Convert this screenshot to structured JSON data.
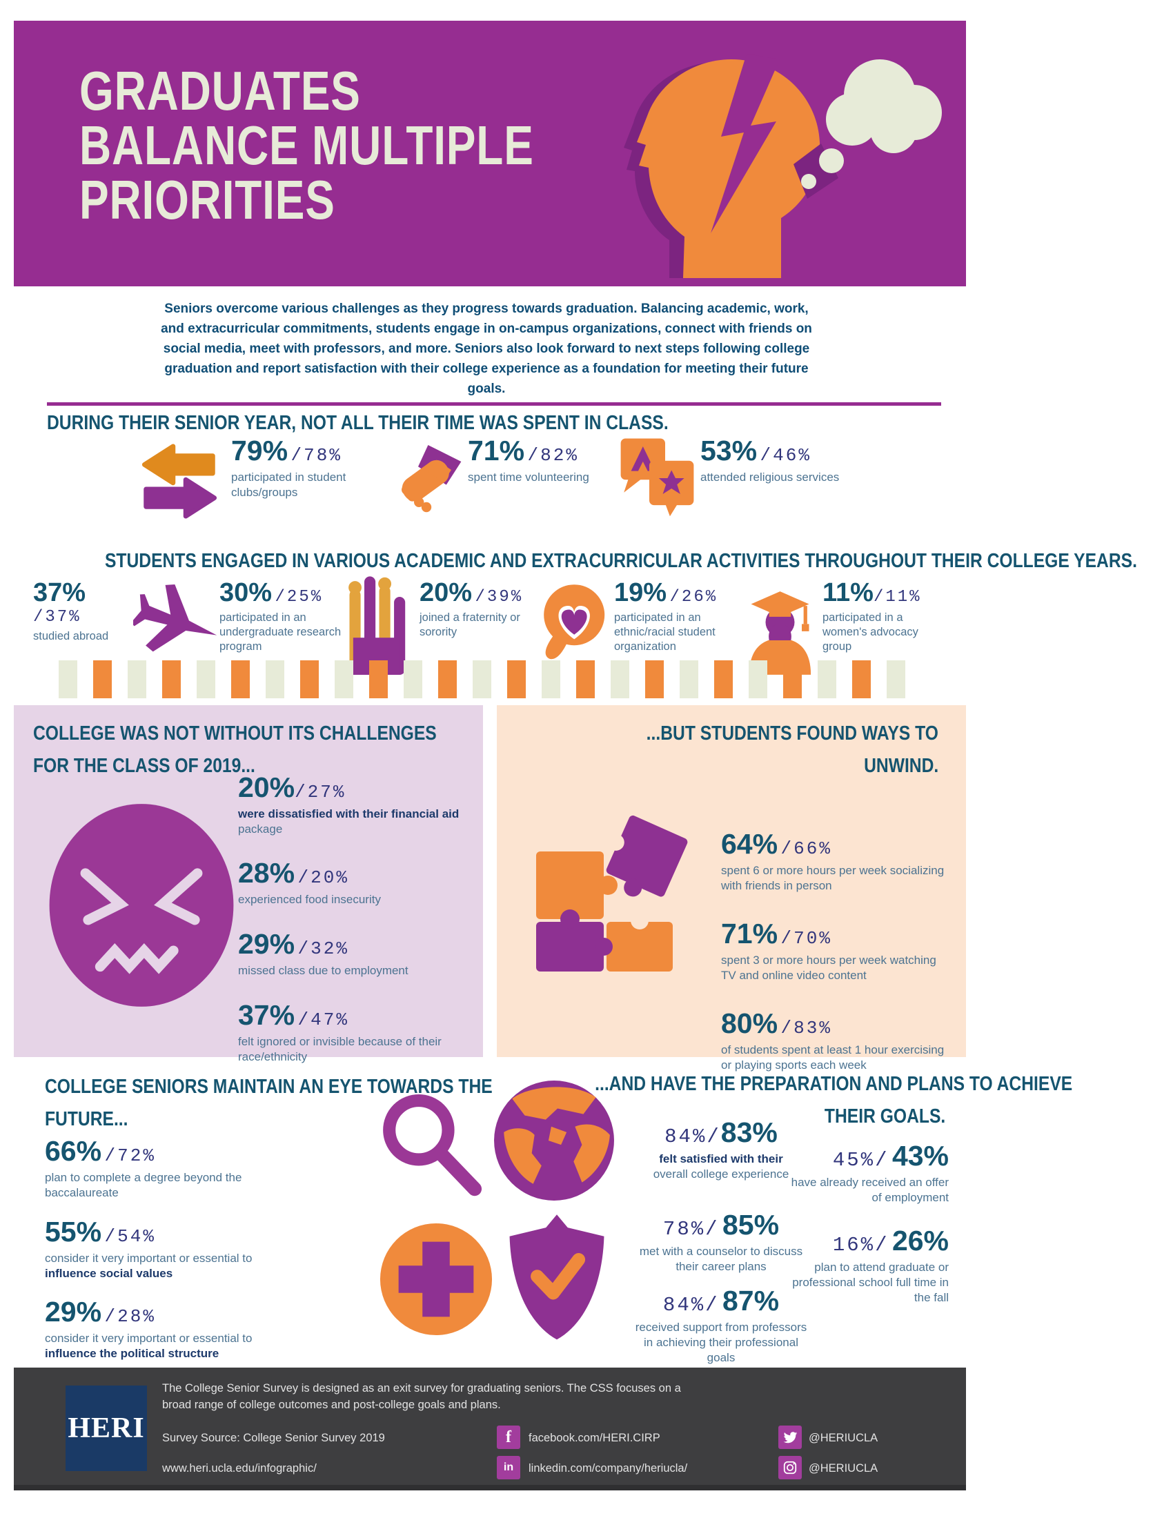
{
  "colors": {
    "banner_purple": "#962d91",
    "icon_purple": "#9b3896",
    "orange": "#f08a3c",
    "gold": "#e3a33d",
    "cream": "#e7ebd8",
    "teal_heading": "#15546f",
    "indigo_number": "#32367c",
    "steel_label": "#4c7391",
    "navy_bold_label": "#1d3a6b",
    "lavender_box": "#e6d4e7",
    "peach_box": "#fce4d1",
    "footer_gray": "#3e3e40",
    "logo_navy": "#1a3a66",
    "social_purple": "#a23d9d"
  },
  "decor": {
    "square_count": 25
  },
  "header": {
    "title_line1": "GRADUATES",
    "title_line2": "BALANCE MULTIPLE",
    "title_line3": "PRIORITIES"
  },
  "intro": "Seniors overcome various challenges as they progress towards graduation. Balancing academic, work, and extracurricular commitments, students engage in on-campus organizations, connect with friends on social media, meet with professors, and more. Seniors also look forward to next steps following college graduation and report satisfaction with their college experience as a foundation for meeting their future goals.",
  "section_senior_year": {
    "heading": "DURING THEIR SENIOR YEAR, NOT ALL THEIR TIME WAS SPENT IN CLASS.",
    "stats": [
      {
        "value": "79%",
        "comparison": "/78%",
        "label": "participated in student clubs/groups"
      },
      {
        "value": "71%",
        "comparison": "/82%",
        "label": "spent time volunteering"
      },
      {
        "value": "53%",
        "comparison": "/46%",
        "label": "attended religious services"
      }
    ]
  },
  "section_activities": {
    "heading": "STUDENTS ENGAGED IN VARIOUS ACADEMIC AND EXTRACURRICULAR ACTIVITIES THROUGHOUT THEIR COLLEGE YEARS.",
    "stats": [
      {
        "value": "37%",
        "comparison": "/37%",
        "label": "studied abroad"
      },
      {
        "value": "30%",
        "comparison": "/25%",
        "label": "participated in an undergraduate research program"
      },
      {
        "value": "20%",
        "comparison": "/39%",
        "label": "joined a fraternity or sorority"
      },
      {
        "value": "19%",
        "comparison": "/26%",
        "label": "participated in an ethnic/racial student organization"
      },
      {
        "value": "11%",
        "comparison": "/11%",
        "label": "participated in a women's advocacy group"
      }
    ]
  },
  "section_challenges": {
    "heading_line1": "COLLEGE WAS NOT WITHOUT ITS CHALLENGES",
    "heading_line2": "FOR THE CLASS OF 2019...",
    "stats": [
      {
        "value": "20%",
        "comparison": "/27%",
        "label_bold": "were dissatisfied with their financial aid",
        "label": "package"
      },
      {
        "value": "28%",
        "comparison": "/20%",
        "label": "experienced food insecurity"
      },
      {
        "value": "29%",
        "comparison": "/32%",
        "label": "missed class due to employment"
      },
      {
        "value": "37%",
        "comparison": "/47%",
        "label": "felt ignored or invisible because of their race/ethnicity"
      }
    ]
  },
  "section_unwind": {
    "heading_line1": "...BUT STUDENTS FOUND WAYS TO",
    "heading_line2": "UNWIND.",
    "stats": [
      {
        "value": "64%",
        "comparison": "/66%",
        "label": "spent 6 or more hours per week socializing with friends in person"
      },
      {
        "value": "71%",
        "comparison": "/70%",
        "label": "spent 3 or more hours per week watching TV and online video content"
      },
      {
        "value": "80%",
        "comparison": "/83%",
        "label": "of students spent at least 1 hour exercising or playing sports each week"
      }
    ]
  },
  "section_future": {
    "heading_line1": "COLLEGE SENIORS MAINTAIN AN EYE TOWARDS THE",
    "heading_line2": "FUTURE...",
    "stats": [
      {
        "value": "66%",
        "comparison": "/72%",
        "label": "plan to complete a degree beyond the baccalaureate",
        "label_bold": ""
      },
      {
        "value": "55%",
        "comparison": "/54%",
        "label": "consider it very important or essential to",
        "label_bold": "influence social values"
      },
      {
        "value": "29%",
        "comparison": "/28%",
        "label": "consider it very important or essential to",
        "label_bold": "influence the political structure"
      }
    ]
  },
  "section_goals": {
    "heading_line1": "...AND HAVE THE PREPARATION AND PLANS TO ACHIEVE",
    "heading_line2": "THEIR GOALS.",
    "stats_center": [
      {
        "comparison": "84%/",
        "value": "83%",
        "label_bold": "felt satisfied with their",
        "label": "overall college experience"
      },
      {
        "comparison": "78%/",
        "value": "85%",
        "label_bold": "",
        "label": "met with a counselor to discuss their career plans"
      },
      {
        "comparison": "84%/",
        "value": "87%",
        "label_bold": "",
        "label": "received support from professors in achieving their professional goals"
      }
    ],
    "stats_right": [
      {
        "comparison": "45%/",
        "value": "43%",
        "label": "have already received an offer of employment"
      },
      {
        "comparison": "16%/",
        "value": "26%",
        "label": "plan to attend graduate or professional school full time in the fall"
      }
    ]
  },
  "footer": {
    "logo": "HERI",
    "description": "The College Senior Survey is designed as an exit survey for graduating seniors. The CSS focuses on a broad range of college outcomes and post-college goals and plans.",
    "source": "Survey Source: College Senior Survey 2019",
    "url": "www.heri.ucla.edu/infographic/",
    "social": [
      {
        "name": "facebook",
        "text": "facebook.com/HERI.CIRP"
      },
      {
        "name": "linkedin",
        "text": "linkedin.com/company/heriucla/"
      },
      {
        "name": "twitter",
        "text": "@HERIUCLA"
      },
      {
        "name": "instagram",
        "text": "@HERIUCLA"
      }
    ]
  }
}
